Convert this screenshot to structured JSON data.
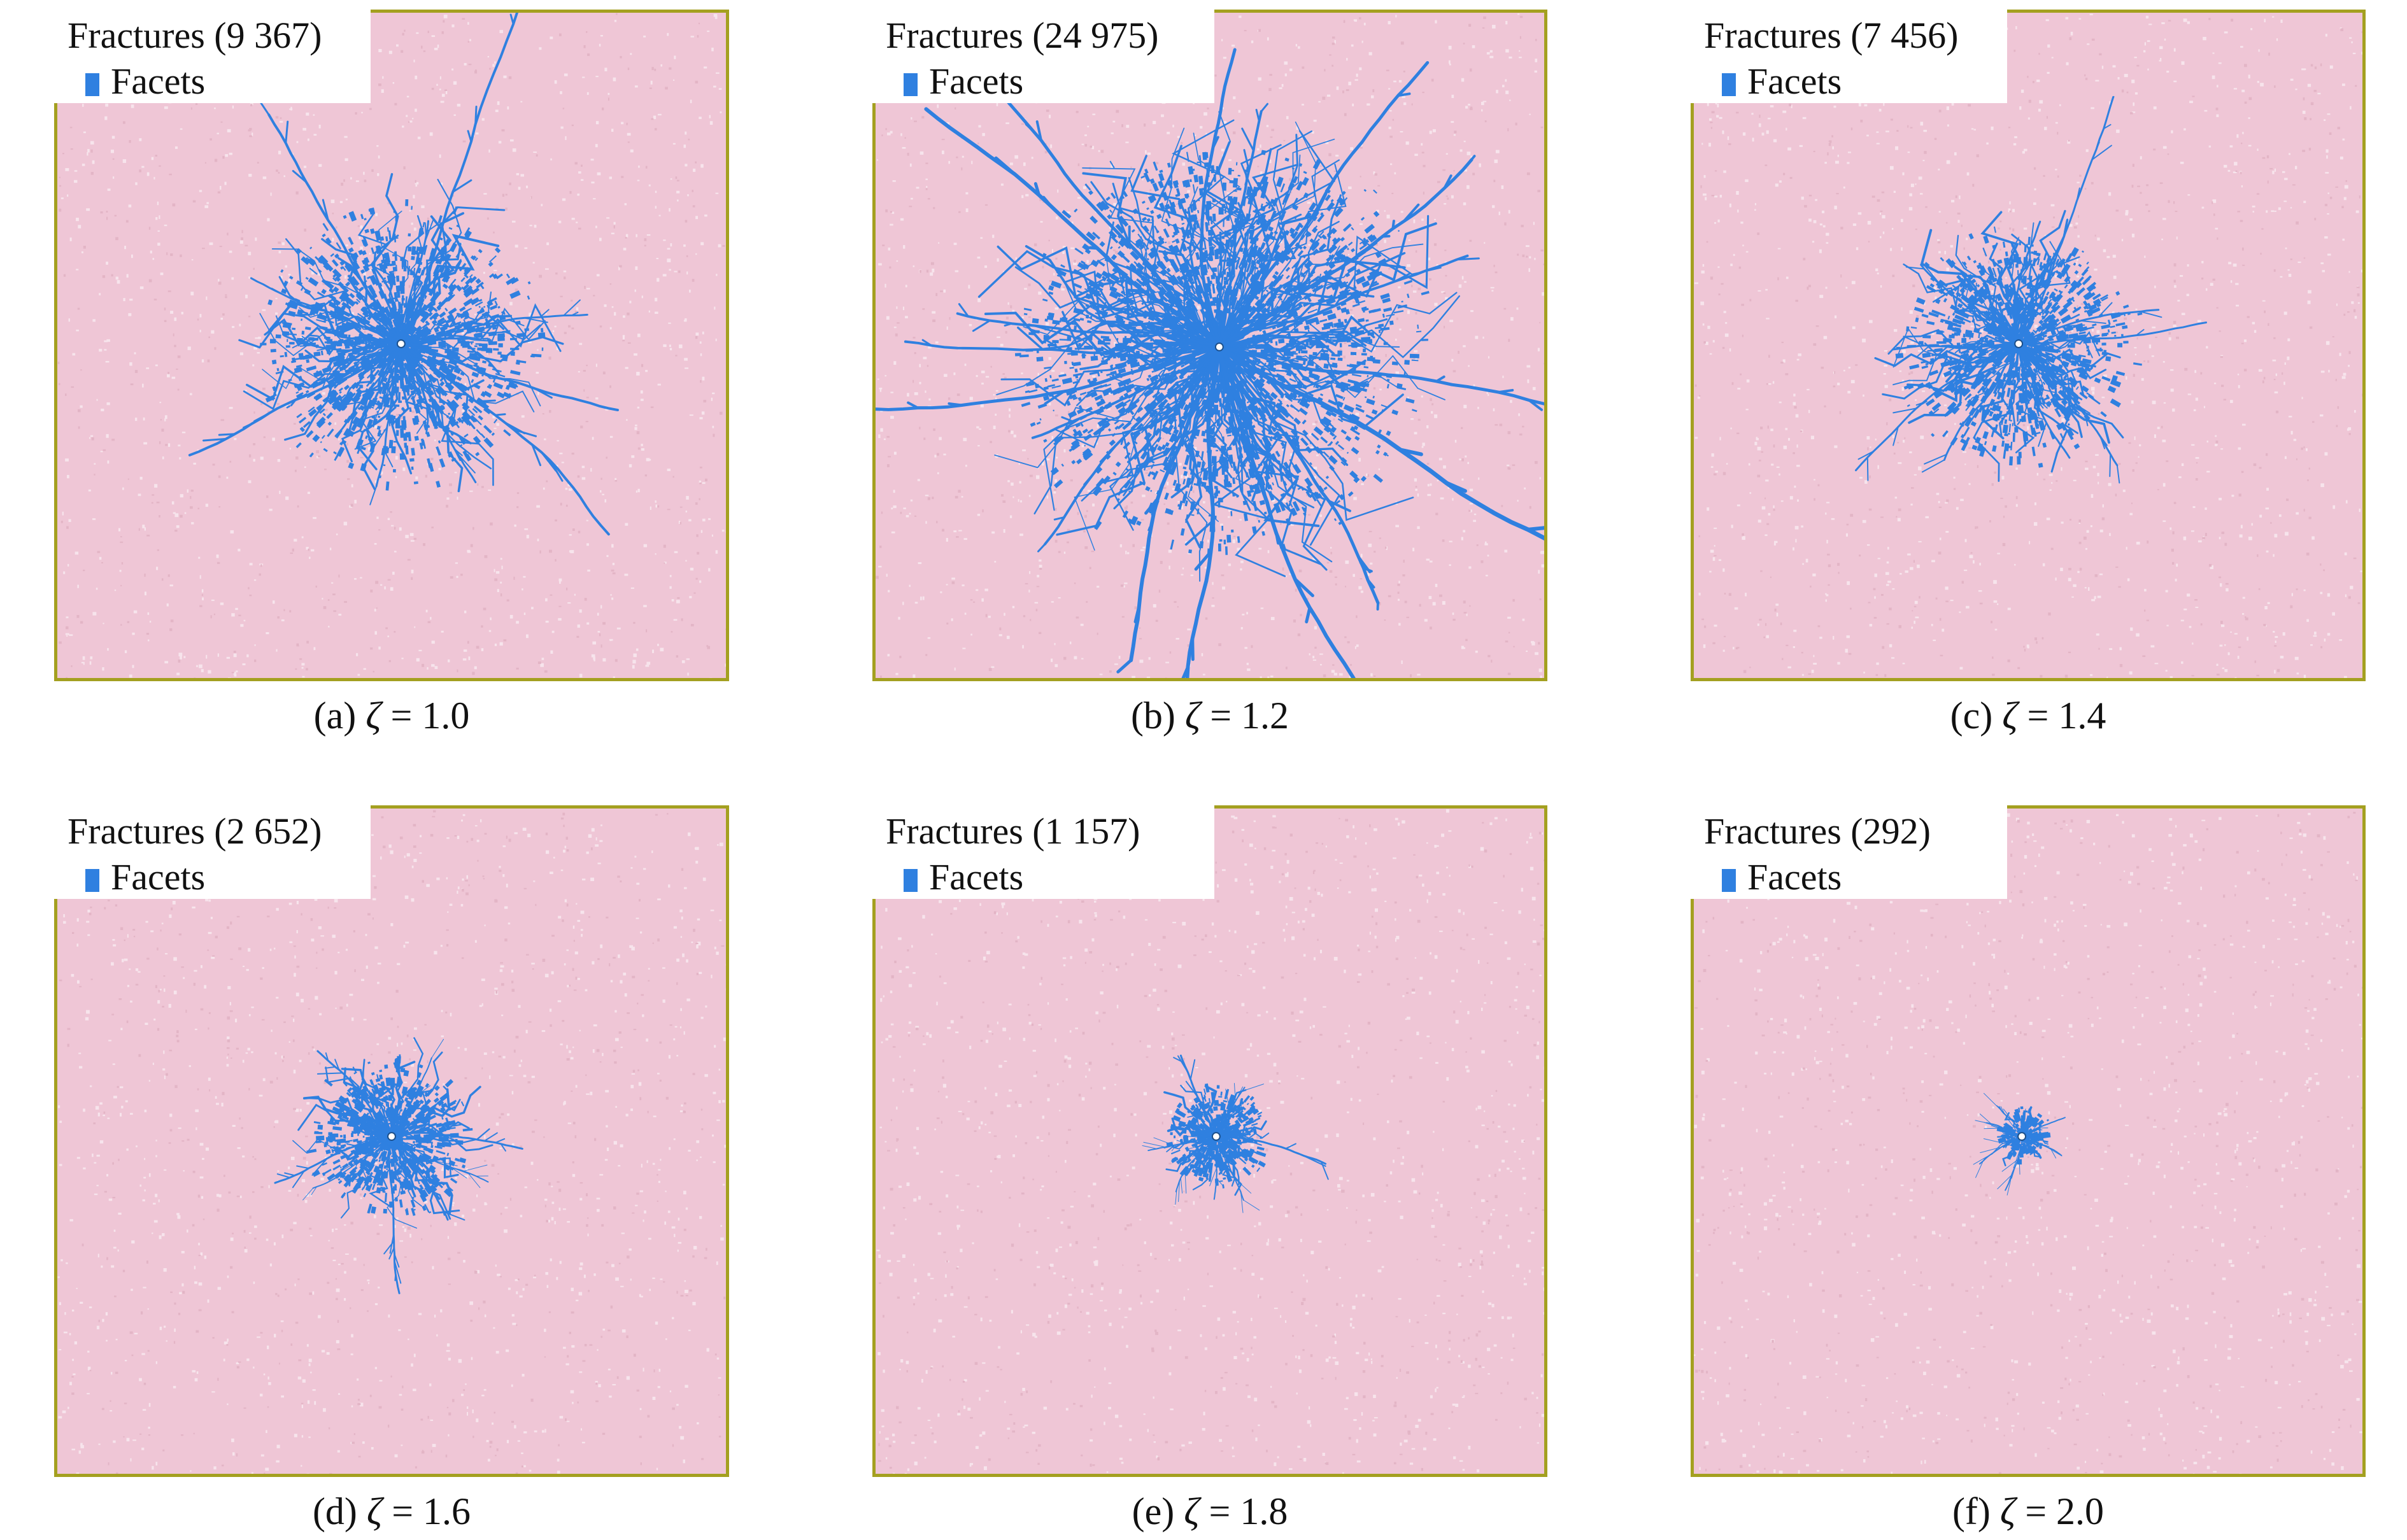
{
  "figure": {
    "legend_label": "Facets",
    "colors": {
      "background": "#efc6d6",
      "fracture": "#2f80e0",
      "border": "#a4a020"
    },
    "panels": [
      {
        "id": "a",
        "fractures": "Fractures (9 367)",
        "caption_prefix": "(a)",
        "symbol": "ζ",
        "caption_value": "= 1.0"
      },
      {
        "id": "b",
        "fractures": "Fractures (24 975)",
        "caption_prefix": "(b)",
        "symbol": "ζ",
        "caption_value": "= 1.2"
      },
      {
        "id": "c",
        "fractures": "Fractures (7 456)",
        "caption_prefix": "(c)",
        "symbol": "ζ",
        "caption_value": "= 1.4"
      },
      {
        "id": "d",
        "fractures": "Fractures (2 652)",
        "caption_prefix": "(d)",
        "symbol": "ζ",
        "caption_value": "= 1.6"
      },
      {
        "id": "e",
        "fractures": "Fractures (1 157)",
        "caption_prefix": "(e)",
        "symbol": "ζ",
        "caption_value": "= 1.8"
      },
      {
        "id": "f",
        "fractures": "Fractures (292)",
        "caption_prefix": "(f)",
        "symbol": "ζ",
        "caption_value": "= 2.0"
      }
    ]
  }
}
